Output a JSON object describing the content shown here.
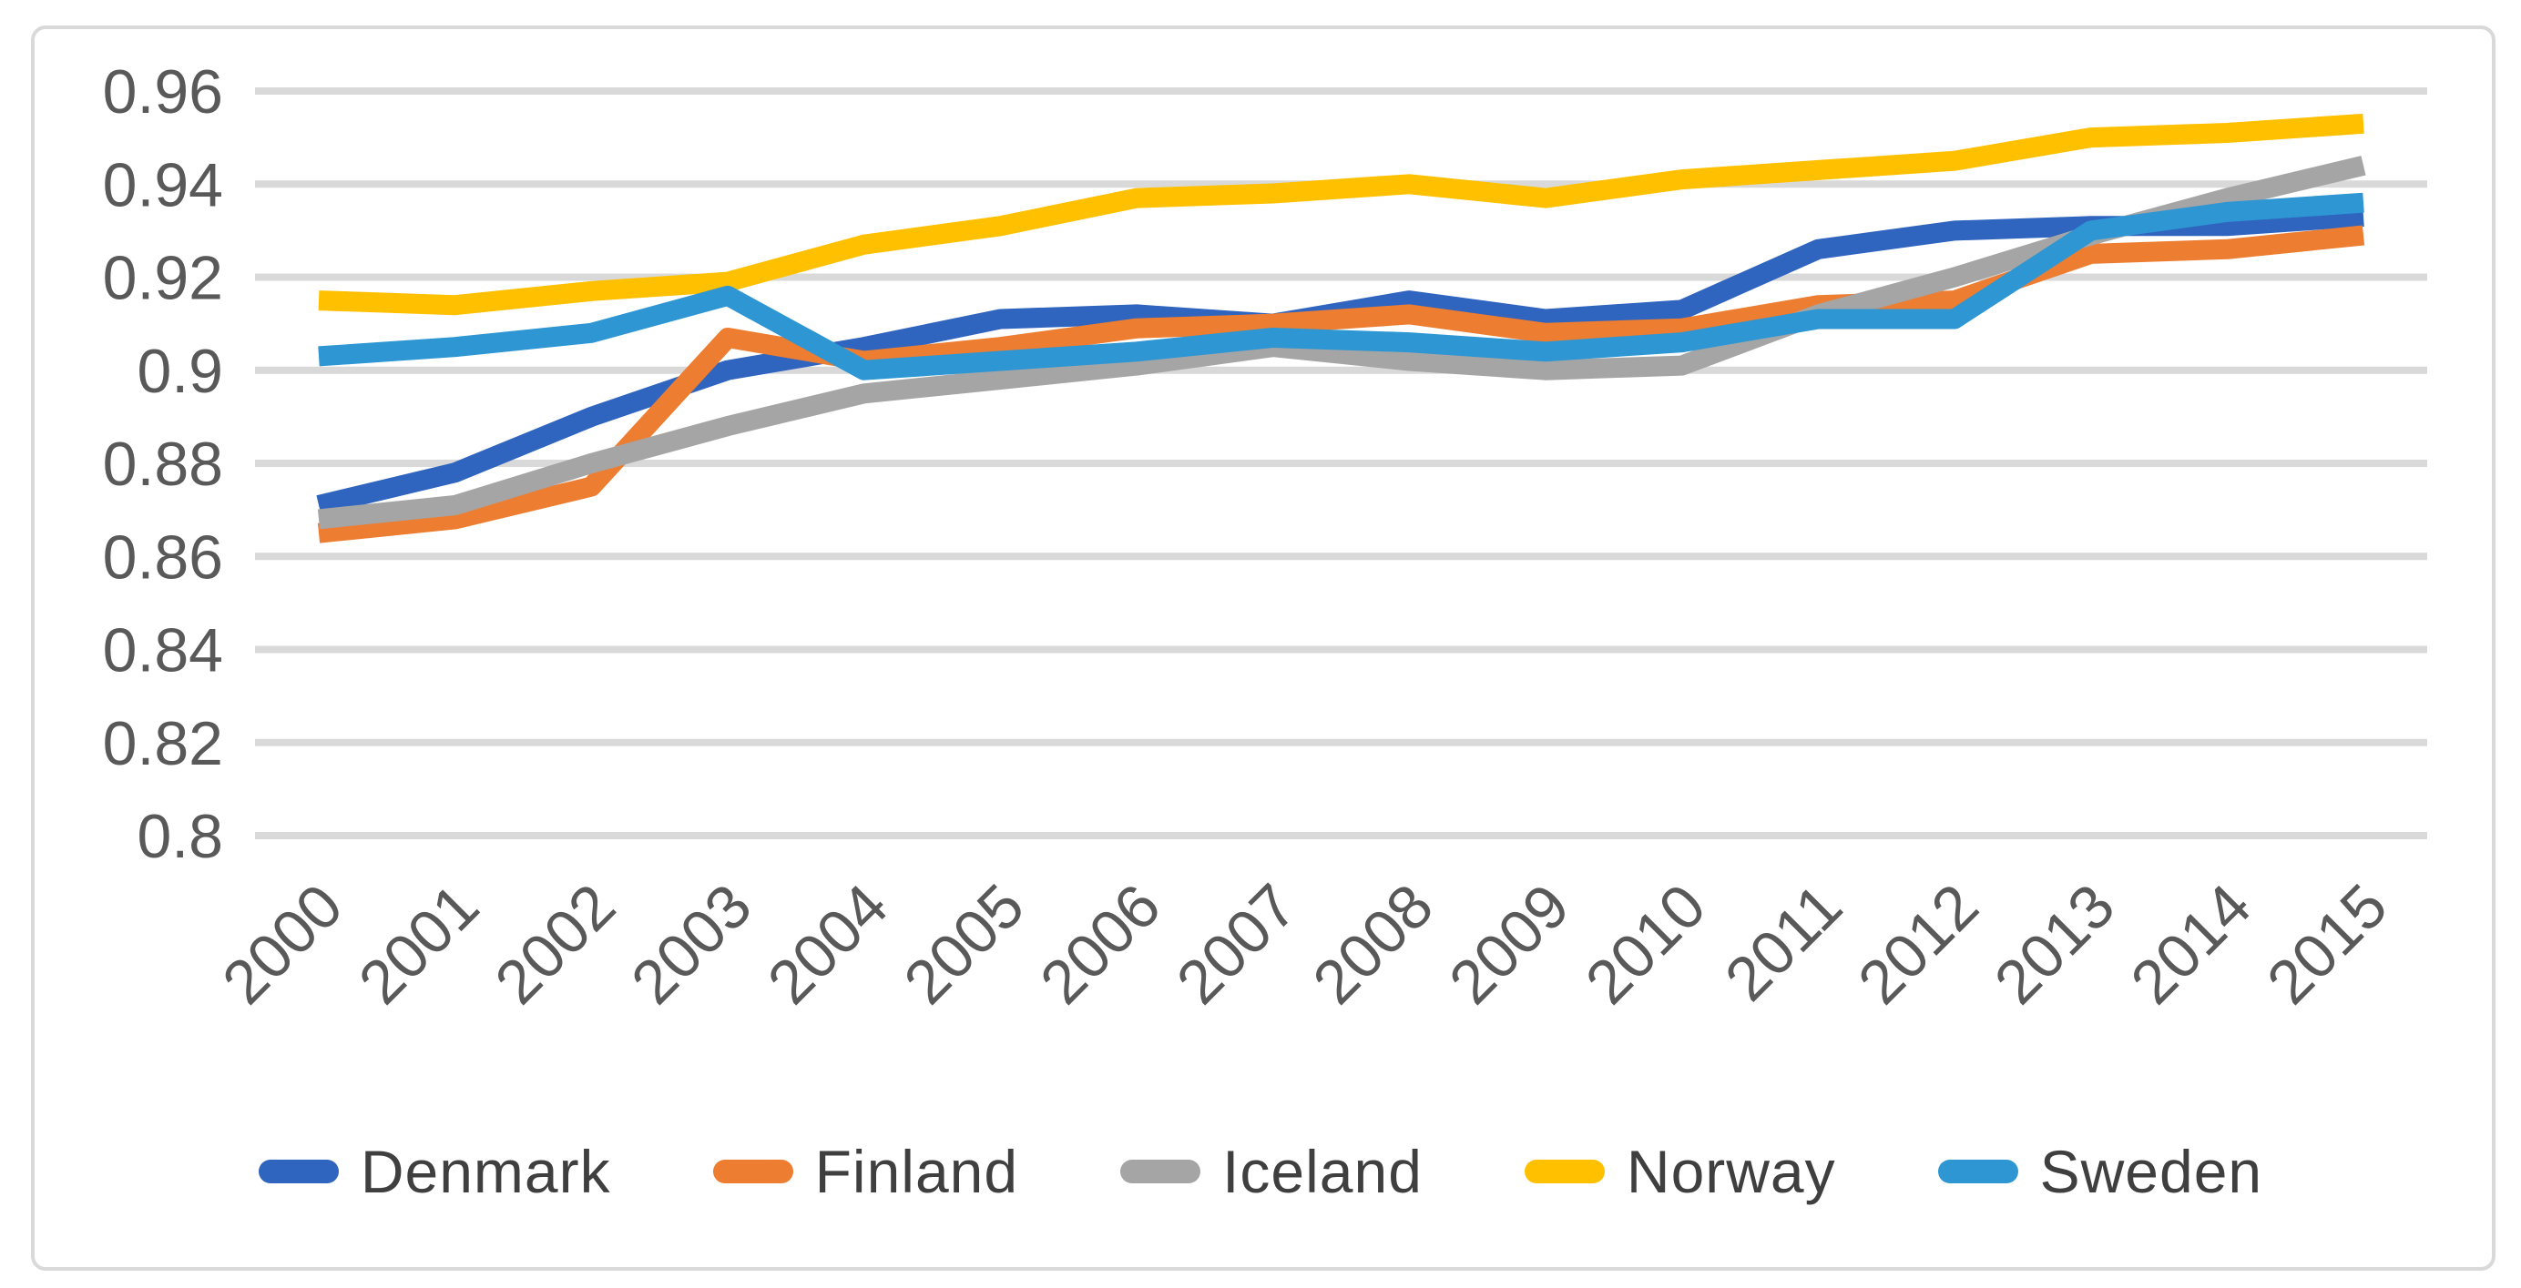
{
  "chart_data": {
    "type": "line",
    "title": "",
    "xlabel": "",
    "ylabel": "",
    "x": [
      2000,
      2001,
      2002,
      2003,
      2004,
      2005,
      2006,
      2007,
      2008,
      2009,
      2010,
      2011,
      2012,
      2013,
      2014,
      2015
    ],
    "series": [
      {
        "name": "Denmark",
        "color": "#2F64BF",
        "values": [
          0.871,
          0.878,
          0.89,
          0.9,
          0.905,
          0.911,
          0.912,
          0.91,
          0.915,
          0.911,
          0.913,
          0.926,
          0.93,
          0.931,
          0.931,
          0.933
        ]
      },
      {
        "name": "Finland",
        "color": "#ED7D31",
        "values": [
          0.865,
          0.868,
          0.875,
          0.907,
          0.902,
          0.905,
          0.909,
          0.91,
          0.912,
          0.908,
          0.909,
          0.914,
          0.915,
          0.925,
          0.926,
          0.929
        ]
      },
      {
        "name": "Iceland",
        "color": "#A5A5A5",
        "values": [
          0.868,
          0.871,
          0.88,
          0.888,
          0.895,
          0.898,
          0.901,
          0.905,
          0.902,
          0.9,
          0.901,
          0.912,
          0.92,
          0.929,
          0.937,
          0.944
        ]
      },
      {
        "name": "Norway",
        "color": "#FFC000",
        "values": [
          0.915,
          0.914,
          0.917,
          0.919,
          0.927,
          0.931,
          0.937,
          0.938,
          0.94,
          0.937,
          0.941,
          0.943,
          0.945,
          0.95,
          0.951,
          0.953
        ]
      },
      {
        "name": "Sweden",
        "color": "#2E96D3",
        "values": [
          0.903,
          0.905,
          0.908,
          0.916,
          0.9,
          0.902,
          0.904,
          0.907,
          0.906,
          0.904,
          0.906,
          0.911,
          0.911,
          0.93,
          0.934,
          0.936
        ]
      }
    ],
    "ylim": [
      0.8,
      0.96
    ],
    "yticks": [
      "0.8",
      "0.82",
      "0.84",
      "0.86",
      "0.88",
      "0.9",
      "0.92",
      "0.94",
      "0.96"
    ],
    "ytick_values": [
      0.8,
      0.82,
      0.84,
      0.86,
      0.88,
      0.9,
      0.92,
      0.94,
      0.96
    ],
    "grid": "horizontal-on",
    "legend_position": "bottom",
    "colors": {
      "gridline": "#D9D9D9",
      "chart_border": "#D9D9D9",
      "axis_text": "#595959",
      "legend_text": "#3f3f3f",
      "background": "#FFFFFF"
    }
  }
}
